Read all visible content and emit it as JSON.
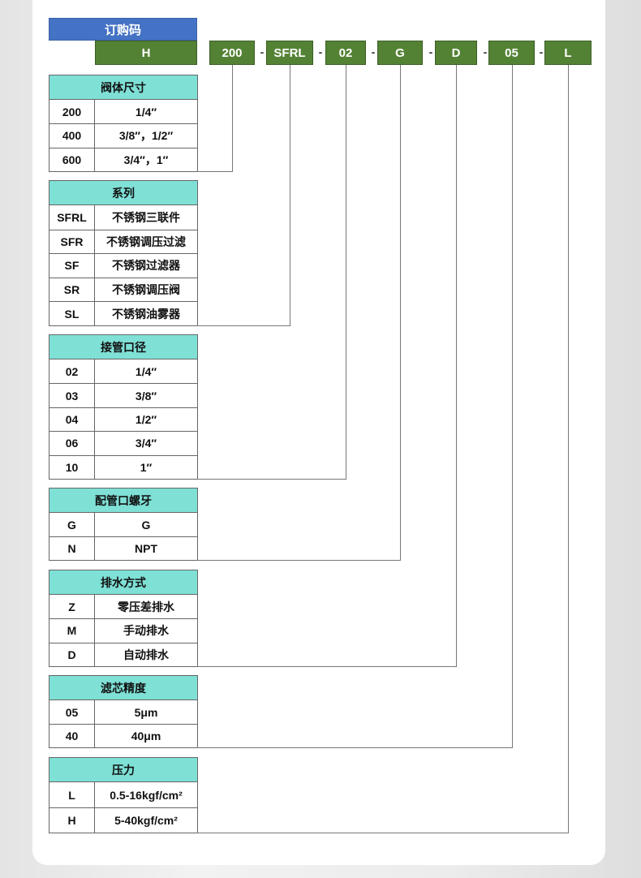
{
  "title": "订购码",
  "codes": [
    "H",
    "200",
    "SFRL",
    "02",
    "G",
    "D",
    "05",
    "L"
  ],
  "separator": "-",
  "tables": [
    {
      "header": "阀体尺寸",
      "rows": [
        [
          "200",
          "1/4″"
        ],
        [
          "400",
          "3/8″，1/2″"
        ],
        [
          "600",
          "3/4″，1″"
        ]
      ]
    },
    {
      "header": "系列",
      "rows": [
        [
          "SFRL",
          "不锈钢三联件"
        ],
        [
          "SFR",
          "不锈钢调压过滤"
        ],
        [
          "SF",
          "不锈钢过滤器"
        ],
        [
          "SR",
          "不锈钢调压阀"
        ],
        [
          "SL",
          "不锈钢油雾器"
        ]
      ]
    },
    {
      "header": "接管口径",
      "rows": [
        [
          "02",
          "1/4″"
        ],
        [
          "03",
          "3/8″"
        ],
        [
          "04",
          "1/2″"
        ],
        [
          "06",
          "3/4″"
        ],
        [
          "10",
          "1″"
        ]
      ]
    },
    {
      "header": "配管口螺牙",
      "rows": [
        [
          "G",
          "G"
        ],
        [
          "N",
          "NPT"
        ]
      ]
    },
    {
      "header": "排水方式",
      "rows": [
        [
          "Z",
          "零压差排水"
        ],
        [
          "M",
          "手动排水"
        ],
        [
          "D",
          "自动排水"
        ]
      ]
    },
    {
      "header": "滤芯精度",
      "rows": [
        [
          "05",
          "5μm"
        ],
        [
          "40",
          "40μm"
        ]
      ]
    },
    {
      "header": "压力",
      "rows": [
        [
          "L",
          "0.5-16kgf/cm²"
        ],
        [
          "H",
          "5-40kgf/cm²"
        ]
      ]
    }
  ],
  "colors": {
    "title": "#4472c4",
    "code": "#548235",
    "header": "#7fe0d6"
  }
}
